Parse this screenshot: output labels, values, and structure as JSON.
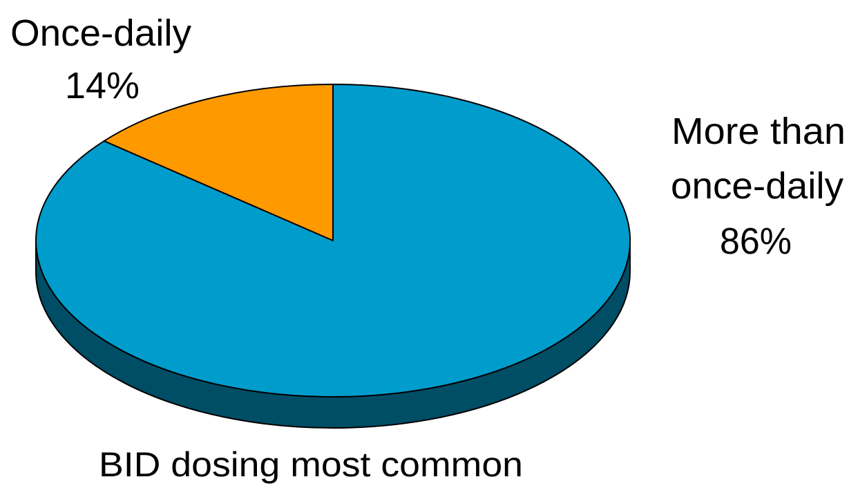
{
  "chart_data": {
    "type": "pie",
    "style": "3d-tilted",
    "slices": [
      {
        "label_lines": [
          "More than",
          "once-daily",
          "86%"
        ],
        "category": "More than once-daily",
        "value": 86,
        "unit": "%",
        "color": "#009ccc",
        "side_color": "#004d66"
      },
      {
        "label_lines": [
          "Once-daily",
          "14%"
        ],
        "category": "Once-daily",
        "value": 14,
        "unit": "%",
        "color": "#ff9900",
        "side_color": "#7a4a00"
      }
    ],
    "caption": "BID dosing most common",
    "legend": "none",
    "edge_color": "#000000"
  }
}
